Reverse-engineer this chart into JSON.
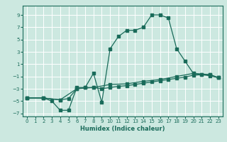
{
  "xlabel": "Humidex (Indice chaleur)",
  "bg_color": "#cce8e0",
  "line_color": "#1a6b5a",
  "grid_color": "#ffffff",
  "xlim": [
    -0.5,
    23.5
  ],
  "ylim": [
    -7.5,
    10.5
  ],
  "xticks": [
    0,
    1,
    2,
    3,
    4,
    5,
    6,
    7,
    8,
    9,
    10,
    11,
    12,
    13,
    14,
    15,
    16,
    17,
    18,
    19,
    20,
    21,
    22,
    23
  ],
  "yticks": [
    -7,
    -5,
    -3,
    -1,
    1,
    3,
    5,
    7,
    9
  ],
  "line1_x": [
    0,
    2,
    3,
    4,
    5,
    6,
    7,
    8,
    9,
    10,
    11,
    12,
    13,
    14,
    15,
    16,
    17,
    18,
    19,
    20,
    21,
    22,
    23
  ],
  "line1_y": [
    -4.5,
    -4.5,
    -5.0,
    -6.5,
    -6.5,
    -2.8,
    -2.8,
    -0.5,
    -5.2,
    3.5,
    5.5,
    6.5,
    6.5,
    7.0,
    9.0,
    9.0,
    8.5,
    3.5,
    1.5,
    -0.5,
    -0.7,
    -0.9,
    -1.2
  ],
  "line2_x": [
    0,
    2,
    4,
    5,
    6,
    7,
    8,
    9,
    10,
    11,
    12,
    13,
    14,
    15,
    16,
    17,
    18,
    19,
    20,
    21,
    22,
    23
  ],
  "line2_y": [
    -4.5,
    -4.5,
    -4.8,
    -4.6,
    -3.0,
    -2.8,
    -2.8,
    -3.0,
    -2.8,
    -2.6,
    -2.5,
    -2.3,
    -2.1,
    -1.9,
    -1.7,
    -1.5,
    -1.3,
    -1.1,
    -0.8,
    -0.7,
    -0.7,
    -1.2
  ],
  "line3_x": [
    0,
    2,
    4,
    6,
    8,
    10,
    12,
    14,
    16,
    18,
    20,
    22,
    23
  ],
  "line3_y": [
    -4.5,
    -4.5,
    -4.8,
    -3.0,
    -2.8,
    -2.3,
    -2.2,
    -1.8,
    -1.5,
    -1.0,
    -0.5,
    -0.7,
    -1.2
  ]
}
